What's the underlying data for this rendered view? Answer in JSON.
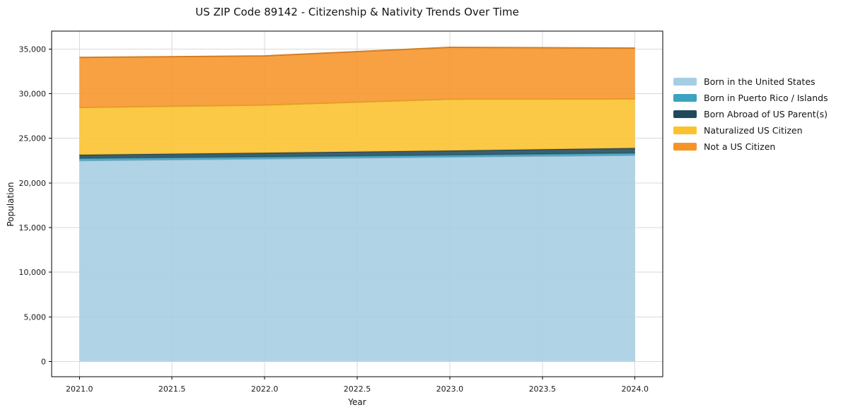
{
  "chart_data": {
    "type": "area",
    "stacked": true,
    "title": "US ZIP Code 89142 - Citizenship & Nativity Trends Over Time",
    "xlabel": "Year",
    "ylabel": "Population",
    "x": [
      2021,
      2022,
      2023,
      2024
    ],
    "series": [
      {
        "name": "Born in the United States",
        "color": "#a5cee3",
        "values": [
          22500,
          22700,
          22900,
          23100
        ]
      },
      {
        "name": "Born in Puerto Rico / Islands",
        "color": "#3da3c2",
        "values": [
          250,
          220,
          220,
          250
        ]
      },
      {
        "name": "Born Abroad of US Parent(s)",
        "color": "#204a5c",
        "values": [
          400,
          450,
          500,
          550
        ]
      },
      {
        "name": "Naturalized US Citizen",
        "color": "#fcc22d",
        "values": [
          5300,
          5350,
          5760,
          5500
        ]
      },
      {
        "name": "Not a US Citizen",
        "color": "#f79428",
        "values": [
          5600,
          5500,
          5800,
          5700
        ]
      }
    ],
    "xlim": [
      2020.85,
      2024.15
    ],
    "ylim": [
      -1700,
      37000
    ],
    "x_ticks": [
      {
        "value": 2021.0,
        "label": "2021.0"
      },
      {
        "value": 2021.5,
        "label": "2021.5"
      },
      {
        "value": 2022.0,
        "label": "2022.0"
      },
      {
        "value": 2022.5,
        "label": "2022.5"
      },
      {
        "value": 2023.0,
        "label": "2023.0"
      },
      {
        "value": 2023.5,
        "label": "2023.5"
      },
      {
        "value": 2024.0,
        "label": "2024.0"
      }
    ],
    "y_ticks": [
      {
        "value": 0,
        "label": "0"
      },
      {
        "value": 5000,
        "label": "5,000"
      },
      {
        "value": 10000,
        "label": "10,000"
      },
      {
        "value": 15000,
        "label": "15,000"
      },
      {
        "value": 20000,
        "label": "20,000"
      },
      {
        "value": 25000,
        "label": "25,000"
      },
      {
        "value": 30000,
        "label": "30,000"
      },
      {
        "value": 35000,
        "label": "35,000"
      }
    ],
    "grid": true,
    "legend_position": "right-outside",
    "colors": {
      "background": "#ffffff",
      "grid": "#d9d9d9",
      "spine": "#000000",
      "tick_label": "#1a1a1a"
    }
  }
}
